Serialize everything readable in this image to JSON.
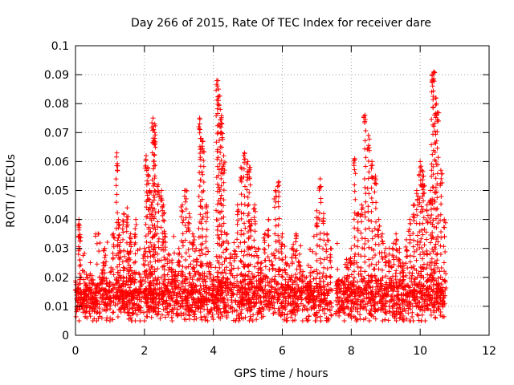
{
  "chart_data": {
    "type": "scatter",
    "title": "Day 266 of 2015, Rate Of TEC Index for receiver dare",
    "xlabel": "GPS time / hours",
    "ylabel": "ROTI / TECUs",
    "xlim": [
      0,
      12
    ],
    "ylim": [
      0,
      0.1
    ],
    "xticks": [
      0,
      2,
      4,
      6,
      8,
      10,
      12
    ],
    "xtick_labels": [
      "0",
      "2",
      "4",
      "6",
      "8",
      "10",
      "12"
    ],
    "yticks": [
      0,
      0.01,
      0.02,
      0.03,
      0.04,
      0.05,
      0.06,
      0.07,
      0.08,
      0.09,
      0.1
    ],
    "ytick_labels": [
      "0",
      "0.01",
      "0.02",
      "0.03",
      "0.04",
      "0.05",
      "0.06",
      "0.07",
      "0.08",
      "0.09",
      "0.1"
    ],
    "grid": true,
    "marker": "+",
    "color": "#ff0000",
    "x_data_range_hours": [
      0.0,
      10.75
    ],
    "series": [
      {
        "name": "ROTI",
        "x": [
          0.05,
          0.1,
          0.12,
          0.15,
          0.2,
          0.3,
          0.4,
          0.5,
          0.6,
          0.7,
          0.8,
          0.85,
          0.9,
          1.0,
          1.1,
          1.2,
          1.25,
          1.3,
          1.4,
          1.5,
          1.55,
          1.6,
          1.7,
          1.75,
          1.8,
          1.9,
          2.0,
          2.05,
          2.1,
          2.15,
          2.2,
          2.25,
          2.3,
          2.3,
          2.4,
          2.5,
          2.55,
          2.6,
          2.7,
          2.8,
          2.9,
          3.0,
          3.1,
          3.2,
          3.3,
          3.4,
          3.5,
          3.6,
          3.65,
          3.7,
          3.8,
          3.9,
          4.0,
          4.1,
          4.15,
          4.2,
          4.25,
          4.3,
          4.4,
          4.5,
          4.6,
          4.7,
          4.8,
          4.9,
          5.0,
          5.05,
          5.1,
          5.2,
          5.3,
          5.4,
          5.5,
          5.6,
          5.7,
          5.8,
          5.9,
          6.0,
          6.1,
          6.2,
          6.3,
          6.4,
          6.5,
          6.6,
          6.7,
          6.8,
          6.9,
          7.0,
          7.1,
          7.2,
          7.3,
          7.4,
          7.6,
          7.7,
          7.8,
          7.9,
          8.0,
          8.1,
          8.2,
          8.3,
          8.4,
          8.5,
          8.6,
          8.7,
          8.8,
          8.9,
          9.0,
          9.1,
          9.2,
          9.3,
          9.4,
          9.5,
          9.6,
          9.7,
          9.8,
          9.9,
          10.0,
          10.05,
          10.1,
          10.2,
          10.3,
          10.35,
          10.4,
          10.45,
          10.5,
          10.6,
          10.7
        ],
        "y": [
          0.012,
          0.04,
          0.038,
          0.015,
          0.011,
          0.014,
          0.018,
          0.013,
          0.016,
          0.02,
          0.025,
          0.03,
          0.013,
          0.018,
          0.035,
          0.063,
          0.04,
          0.032,
          0.042,
          0.044,
          0.028,
          0.035,
          0.025,
          0.04,
          0.015,
          0.02,
          0.03,
          0.062,
          0.058,
          0.05,
          0.045,
          0.075,
          0.073,
          0.068,
          0.052,
          0.05,
          0.045,
          0.035,
          0.028,
          0.025,
          0.022,
          0.03,
          0.045,
          0.05,
          0.042,
          0.035,
          0.03,
          0.075,
          0.068,
          0.067,
          0.045,
          0.025,
          0.02,
          0.088,
          0.085,
          0.078,
          0.073,
          0.062,
          0.035,
          0.028,
          0.032,
          0.045,
          0.058,
          0.063,
          0.06,
          0.058,
          0.04,
          0.045,
          0.03,
          0.025,
          0.035,
          0.04,
          0.028,
          0.05,
          0.053,
          0.035,
          0.025,
          0.02,
          0.03,
          0.035,
          0.028,
          0.022,
          0.02,
          0.018,
          0.015,
          0.043,
          0.054,
          0.042,
          0.035,
          0.03,
          0.018,
          0.015,
          0.02,
          0.025,
          0.03,
          0.061,
          0.042,
          0.045,
          0.076,
          0.069,
          0.06,
          0.055,
          0.04,
          0.035,
          0.03,
          0.028,
          0.03,
          0.035,
          0.03,
          0.025,
          0.033,
          0.04,
          0.045,
          0.05,
          0.06,
          0.057,
          0.055,
          0.045,
          0.05,
          0.09,
          0.091,
          0.082,
          0.077,
          0.057,
          0.04
        ]
      }
    ],
    "baseline_band": {
      "min": 0.005,
      "max": 0.025,
      "typical": 0.013
    },
    "data_gaps_hours": [
      [
        7.45,
        7.55
      ]
    ]
  }
}
